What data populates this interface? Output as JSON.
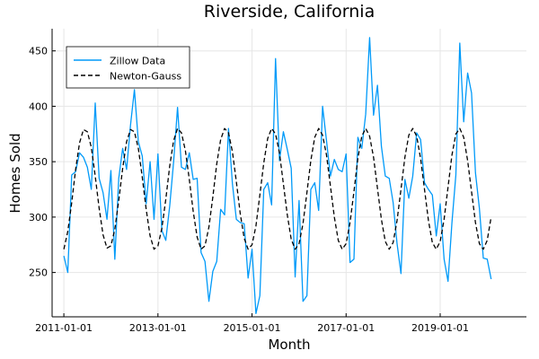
{
  "chart_data": {
    "type": "line",
    "title": "Riverside, California",
    "xlabel": "Month",
    "ylabel": "Homes Sold",
    "xlim": [
      "2010-10-01",
      "2020-11-01"
    ],
    "ylim": [
      210,
      470
    ],
    "grid": true,
    "legend_position": "top-left",
    "x_ticks": [
      {
        "value": "2011-01-01",
        "label": "2011-01-01"
      },
      {
        "value": "2013-01-01",
        "label": "2013-01-01"
      },
      {
        "value": "2015-01-01",
        "label": "2015-01-01"
      },
      {
        "value": "2017-01-01",
        "label": "2017-01-01"
      },
      {
        "value": "2019-01-01",
        "label": "2019-01-01"
      }
    ],
    "y_ticks": [
      {
        "value": 250,
        "label": "250"
      },
      {
        "value": 300,
        "label": "300"
      },
      {
        "value": 350,
        "label": "350"
      },
      {
        "value": 400,
        "label": "400"
      },
      {
        "value": 450,
        "label": "450"
      }
    ],
    "series": [
      {
        "name": "Zillow Data",
        "color": "#009af9",
        "dash": "solid",
        "x_start": "2011-01-01",
        "x_step": "1 month",
        "values": [
          265,
          250,
          338,
          341,
          358,
          354,
          345,
          325,
          403,
          335,
          322,
          298,
          342,
          262,
          335,
          362,
          343,
          383,
          415,
          368,
          355,
          312,
          350,
          298,
          357,
          288,
          279,
          310,
          350,
          399,
          345,
          343,
          358,
          334,
          335,
          268,
          260,
          224,
          251,
          260,
          307,
          302,
          380,
          330,
          298,
          295,
          294,
          245,
          271,
          213,
          229,
          325,
          331,
          311,
          443,
          351,
          377,
          361,
          344,
          246,
          315,
          224,
          229,
          325,
          331,
          306,
          400,
          369,
          337,
          352,
          343,
          341,
          357,
          259,
          262,
          372,
          362,
          393,
          462,
          392,
          419,
          364,
          337,
          335,
          313,
          276,
          249,
          334,
          317,
          337,
          376,
          370,
          331,
          325,
          320,
          283,
          312,
          262,
          242,
          295,
          338,
          457,
          386,
          430,
          412,
          340,
          308,
          263,
          262,
          244
        ]
      },
      {
        "name": "Newton-Gauss",
        "color": "#000000",
        "dash": "dashed",
        "x_start": "2011-01-01",
        "x_step": "1 month",
        "values": [
          271,
          287,
          313,
          343,
          367,
          379,
          377,
          363,
          337,
          308,
          284,
          272,
          274,
          289,
          315,
          344,
          368,
          379,
          377,
          362,
          336,
          307,
          283,
          271,
          274,
          290,
          316,
          346,
          369,
          380,
          376,
          360,
          334,
          305,
          282,
          271,
          274,
          291,
          318,
          348,
          370,
          380,
          376,
          359,
          332,
          303,
          281,
          271,
          275,
          292,
          320,
          349,
          371,
          380,
          375,
          358,
          330,
          302,
          280,
          271,
          276,
          294,
          322,
          351,
          372,
          380,
          374,
          356,
          328,
          300,
          279,
          271,
          276,
          295,
          323,
          353,
          373,
          380,
          373,
          354,
          326,
          298,
          278,
          271,
          277,
          297,
          325,
          354,
          374,
          380,
          373,
          353,
          325,
          297,
          277,
          271,
          278,
          298,
          327,
          356,
          375,
          380,
          372,
          351,
          323,
          295,
          276,
          271,
          279,
          300
        ]
      }
    ]
  }
}
